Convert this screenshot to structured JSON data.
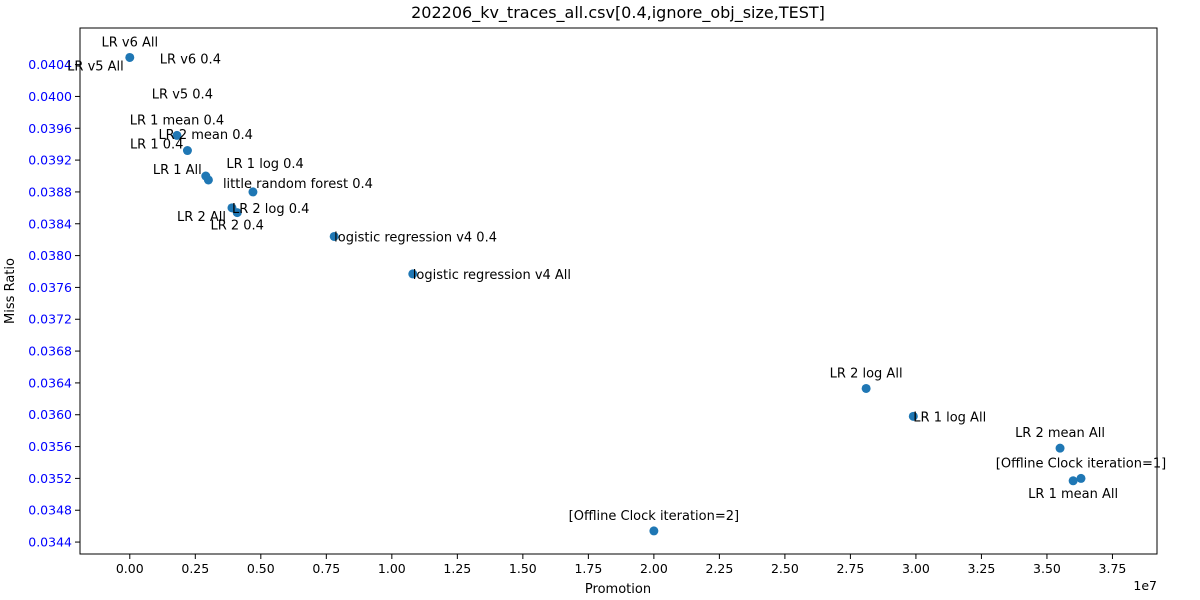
{
  "chart_data": {
    "type": "scatter",
    "title": "202206_kv_traces_all.csv[0.4,ignore_obj_size,TEST]",
    "xlabel": "Promotion",
    "ylabel": "Miss Ratio",
    "x_offset_label": "1e7",
    "x_scale": 10000000,
    "xlim": [
      -1900000,
      39200000
    ],
    "ylim": [
      0.03425,
      0.04086
    ],
    "x_ticks": [
      0,
      2500000,
      5000000,
      7500000,
      10000000,
      12500000,
      15000000,
      17500000,
      20000000,
      22500000,
      25000000,
      27500000,
      30000000,
      32500000,
      35000000,
      37500000
    ],
    "x_tick_labels": [
      "0.00",
      "0.25",
      "0.50",
      "0.75",
      "1.00",
      "1.25",
      "1.50",
      "1.75",
      "2.00",
      "2.25",
      "2.50",
      "2.75",
      "3.00",
      "3.25",
      "3.50",
      "3.75"
    ],
    "y_ticks": [
      0.0344,
      0.0348,
      0.0352,
      0.0356,
      0.036,
      0.0364,
      0.0368,
      0.0372,
      0.0376,
      0.038,
      0.0384,
      0.0388,
      0.0392,
      0.0396,
      0.04,
      0.0404
    ],
    "y_tick_labels": [
      "0.0344",
      "0.0348",
      "0.0352",
      "0.0356",
      "0.0360",
      "0.0364",
      "0.0368",
      "0.0372",
      "0.0376",
      "0.0380",
      "0.0384",
      "0.0388",
      "0.0392",
      "0.0396",
      "0.0400",
      "0.0404"
    ],
    "y_tick_color": "#0000ff",
    "marker_color": "#1f77b4",
    "grid": false,
    "points": [
      {
        "label": "LR v6 All",
        "x": 0,
        "y": 0.04049,
        "anchor": "above"
      },
      {
        "label": "LR v6 0.4",
        "x": 0,
        "y": 0.04049,
        "anchor": "below-right"
      },
      {
        "label": "LR v5 All",
        "x": 0,
        "y": 0.04049,
        "anchor": "below-left"
      },
      {
        "label": "LR v5 0.4",
        "x": 0,
        "y": 0.04049,
        "anchor": "far-below"
      },
      {
        "label": "LR 1 mean 0.4",
        "x": 1800000,
        "y": 0.03951,
        "anchor": "above"
      },
      {
        "label": "LR 1 0.4",
        "x": 2200000,
        "y": 0.03932,
        "anchor": "left"
      },
      {
        "label": "LR 2 mean 0.4",
        "x": 4700000,
        "y": 0.0388,
        "anchor": "far-above"
      },
      {
        "label": "LR 1 All",
        "x": 2900000,
        "y": 0.039,
        "anchor": "left"
      },
      {
        "label": "LR 1 log 0.4",
        "x": 3000000,
        "y": 0.03895,
        "anchor": "above-right"
      },
      {
        "label": "little random forest 0.4",
        "x": 4700000,
        "y": 0.0388,
        "anchor": "right-mid"
      },
      {
        "label": "LR 2 log 0.4",
        "x": 3900000,
        "y": 0.0386,
        "anchor": "right"
      },
      {
        "label": "LR 2 All",
        "x": 3900000,
        "y": 0.0386,
        "anchor": "below-left"
      },
      {
        "label": "LR 2 0.4",
        "x": 4100000,
        "y": 0.03854,
        "anchor": "below"
      },
      {
        "label": "logistic regression v4 0.4",
        "x": 7800000,
        "y": 0.03824,
        "anchor": "right"
      },
      {
        "label": "logistic regression v4 All",
        "x": 10800000,
        "y": 0.03777,
        "anchor": "right"
      },
      {
        "label": "LR 2 log All",
        "x": 28100000,
        "y": 0.03633,
        "anchor": "above"
      },
      {
        "label": "LR 1 log All",
        "x": 29900000,
        "y": 0.03598,
        "anchor": "right"
      },
      {
        "label": "LR 2 mean All",
        "x": 35500000,
        "y": 0.03558,
        "anchor": "above"
      },
      {
        "label": "[Offline Clock iteration=1]",
        "x": 36300000,
        "y": 0.0352,
        "anchor": "above"
      },
      {
        "label": "LR 1 mean All",
        "x": 36000000,
        "y": 0.03517,
        "anchor": "below"
      },
      {
        "label": "[Offline Clock iteration=2]",
        "x": 20000000,
        "y": 0.03454,
        "anchor": "above"
      }
    ]
  }
}
